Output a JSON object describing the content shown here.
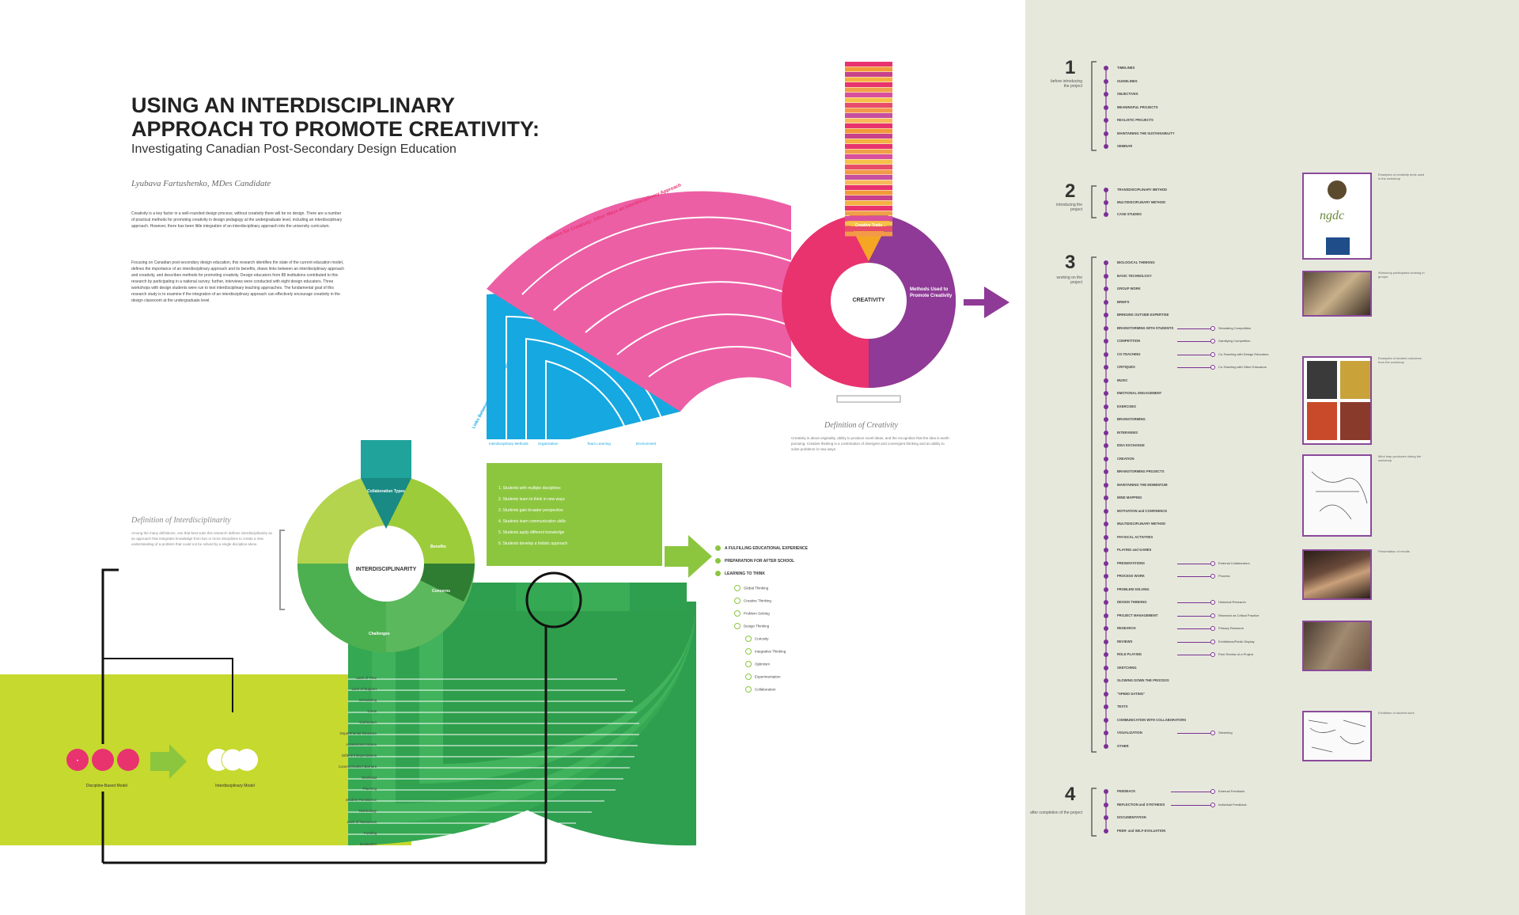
{
  "title": {
    "line1": "USING AN INTERDISCIPLINARY",
    "line2": "APPROACH TO PROMOTE CREATIVITY:",
    "subtitle": "Investigating Canadian Post-Secondary Design Education"
  },
  "author": "Lyubava Fartushenko, MDes Candidate",
  "intro": {
    "p1": "Creativity is a key factor in a well-rounded design process; without creativity there will be no design. There are a number of practical methods for promoting creativity in design pedagogy at the undergraduate level, including an interdisciplinary approach. However, there has been little integration of an interdisciplinary approach into the university curriculum.",
    "p2": "Focusing on Canadian post-secondary design education, this research identifies the state of the current education model, defines the importance of an interdisciplinary approach and its benefits, draws links between an interdisciplinary approach and creativity, and describes methods for promoting creativity. Design educators from 88 institutions contributed to this research by participating in a national survey; further, interviews were conducted with eight design educators. Three workshops with design students were run to test interdisciplinary teaching approaches. The fundamental goal of this research study is to examine if the integration of an interdisciplinary approach can effectively encourage creativity in the design classroom at the undergraduate level."
  },
  "creativity": {
    "center_label": "CREATIVITY",
    "methods_label": "Methods Used to Promote Creativity",
    "strategies_label": "Creative Traits",
    "arc_label": "Factors for Creativity: Other Ways an Interdisciplinary Approach",
    "definition_title": "Definition of Creativity",
    "definition_text": "Creativity is about originality, ability to produce novel ideas, and the recognition that the idea is worth pursuing. Creative thinking is a combination of divergent and convergent thinking and an ability to solve problems in new ways."
  },
  "interdisciplinarity": {
    "center_label": "INTERDISCIPLINARITY",
    "collab_label": "Collaboration Types",
    "benefits_label": "Benefits",
    "concerns_label": "Concerns",
    "challenges_label": "Challenges",
    "definition_title": "Definition of Interdisciplinarity",
    "definition_text": "Among the many definitions, one that best suits this research defines interdisciplinarity as an approach that integrates knowledge from two or more disciplines to create a new understanding of a problem that could not be solved by a single discipline alone."
  },
  "links_label": "Links Between Interdisciplinary Approach and Creativity",
  "blue_labels": [
    "Interdisciplinary Methods",
    "Organisation",
    "Team Learning",
    "Environment"
  ],
  "green_box_items": [
    "Students with multiple disciplines",
    "Students learn to think in new ways",
    "Students gain broader perspective",
    "Students learn communication skills",
    "Students apply different knowledge",
    "Students develop a holistic approach"
  ],
  "outcomes": [
    "A FULFILLING EDUCATIONAL EXPERIENCE",
    "PREPARATION FOR AFTER SCHOOL",
    "LEARNING TO THINK"
  ],
  "thinking_list": [
    "Global Thinking",
    "Creative Thinking",
    "Problem Solving",
    "Design Thinking",
    "Curiosity",
    "Integrative Thinking",
    "Optimism",
    "Experimentation",
    "Collaboration"
  ],
  "challenges_list": [
    "Lack of Time",
    "Lack of Support",
    "Scheduling",
    "Costs",
    "Curriculum",
    "Departmental Structure",
    "Assessment Issues",
    "Different Expectations",
    "Communication Barriers",
    "Workload",
    "Planning",
    "Student Resistance",
    "Technology",
    "Lack of Resources",
    "Funding",
    "Evaluation"
  ],
  "models": {
    "discipline_label": "Discipline-Based Model",
    "interdisciplinary_label": "Interdisciplinary Model"
  },
  "steps": [
    {
      "num": "1",
      "caption": "before introducing the project",
      "items": [
        "TIMELINES",
        "GUIDELINES",
        "OBJECTIVES",
        "MEANINGFUL PROJECTS",
        "REALISTIC PROJECTS",
        "MAINTAINING THE SUSTAINABILITY",
        "SEMINAR"
      ]
    },
    {
      "num": "2",
      "caption": "introducing the project",
      "items": [
        "TRANSDISCIPLINARY METHOD",
        "MULTIDISCIPLINARY METHOD",
        "CASE STUDIES"
      ]
    },
    {
      "num": "3",
      "caption": "working on the project",
      "items": [
        "BIOLOGICAL THINKING",
        "BASIC TECHNOLOGY",
        "GROUP WORK",
        "BRIEFS",
        "BRINGING OUTSIDE EXPERTISE",
        "BRAINSTORMING WITH STUDENTS",
        "COMPETITION",
        "CO-TEACHING",
        "CRITIQUES",
        "MUSIC",
        "EMOTIONAL ENGAGEMENT",
        "EXERCISES",
        "BRAINSTORMING",
        "INTERVIEWS",
        "IDEA EXCHANGE",
        "CREATION",
        "BRAINSTORMING PROJECTS",
        "MAINTAINING THE MOMENTUM",
        "MIND MAPPING",
        "MOTIVATION and CONFIDENCE",
        "MULTIDISCIPLINARY METHOD",
        "PHYSICAL ACTIVITIES",
        "PLAYING and GAMES",
        "PRESENTATIONS",
        "PROCESS WORK",
        "PROBLEM SOLVING",
        "DESIGN THINKING",
        "PROJECT MANAGEMENT",
        "RESEARCH",
        "REVIEWS",
        "ROLE PLAYING",
        "SKETCHING",
        "SLOWING DOWN THE PROCESS",
        "\"SPEED DATING\"",
        "TESTS",
        "COMMUNICATION WITH COLLABORATORS",
        "VISUALIZATION",
        "OTHER"
      ]
    },
    {
      "num": "4",
      "caption": "after completion of the project",
      "items": [
        "FEEDBACK",
        "REFLECTION and SYNTHESIS",
        "DOCUMENTATION",
        "PEER- and SELF-EVALUATION"
      ]
    }
  ],
  "subitems": [
    {
      "parent": 5,
      "label": "Simulating Competition"
    },
    {
      "parent": 6,
      "label": "Gamifying Competition"
    },
    {
      "parent": 7,
      "label": "Co-Teaching with Design Educators"
    },
    {
      "parent": 8,
      "label": "Co-Teaching with Other Educators"
    },
    {
      "parent": 23,
      "label": "External Collaborators"
    },
    {
      "parent": 24,
      "label": "Process"
    },
    {
      "parent": 26,
      "label": "Historical Research"
    },
    {
      "parent": 27,
      "label": "Research as Critical Practice"
    },
    {
      "parent": 28,
      "label": "Primary Research"
    },
    {
      "parent": 29,
      "label": "Exhibitions/Public Display"
    },
    {
      "parent": 30,
      "label": "Peer Review of a Project"
    },
    {
      "parent": 36,
      "label": "Sketching"
    }
  ],
  "step4_subitems": [
    "External Feedback",
    "Individual Feedback"
  ],
  "photo_captions": [
    "Examples of creativity tools used in the workshop",
    "Workshop participants working in groups",
    "Examples of student outcomes from the workshop",
    "Mind map produced during the workshop",
    "Presentation of results",
    "Exhibition of student work"
  ],
  "bar_colors": [
    "#e8336f",
    "#f29a3a",
    "#c9418b",
    "#f5b042",
    "#e8336f",
    "#f0a04a",
    "#d94f9e",
    "#f6c04a",
    "#e84c6b",
    "#f2994a",
    "#c64fa0",
    "#f7b95c"
  ]
}
